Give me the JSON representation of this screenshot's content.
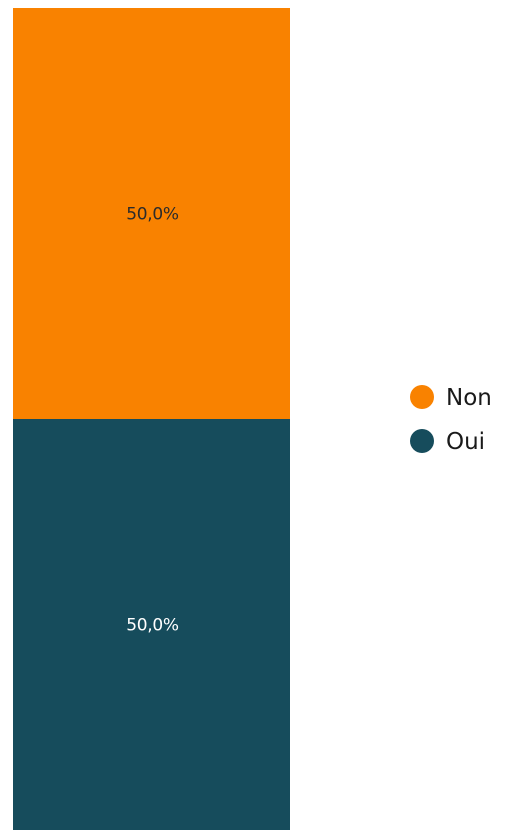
{
  "chart_data": {
    "type": "bar",
    "stacked": true,
    "categories": [
      ""
    ],
    "series": [
      {
        "name": "Oui",
        "values": [
          50.0
        ],
        "label": "50,0%",
        "color": "#164c5c",
        "label_color": "#ffffff"
      },
      {
        "name": "Non",
        "values": [
          50.0
        ],
        "label": "50,0%",
        "color": "#f98200",
        "label_color": "#2b2b2b"
      }
    ],
    "ylim": [
      0,
      100
    ],
    "grid": false,
    "legend": {
      "position": "right",
      "order": [
        "Non",
        "Oui"
      ]
    }
  }
}
